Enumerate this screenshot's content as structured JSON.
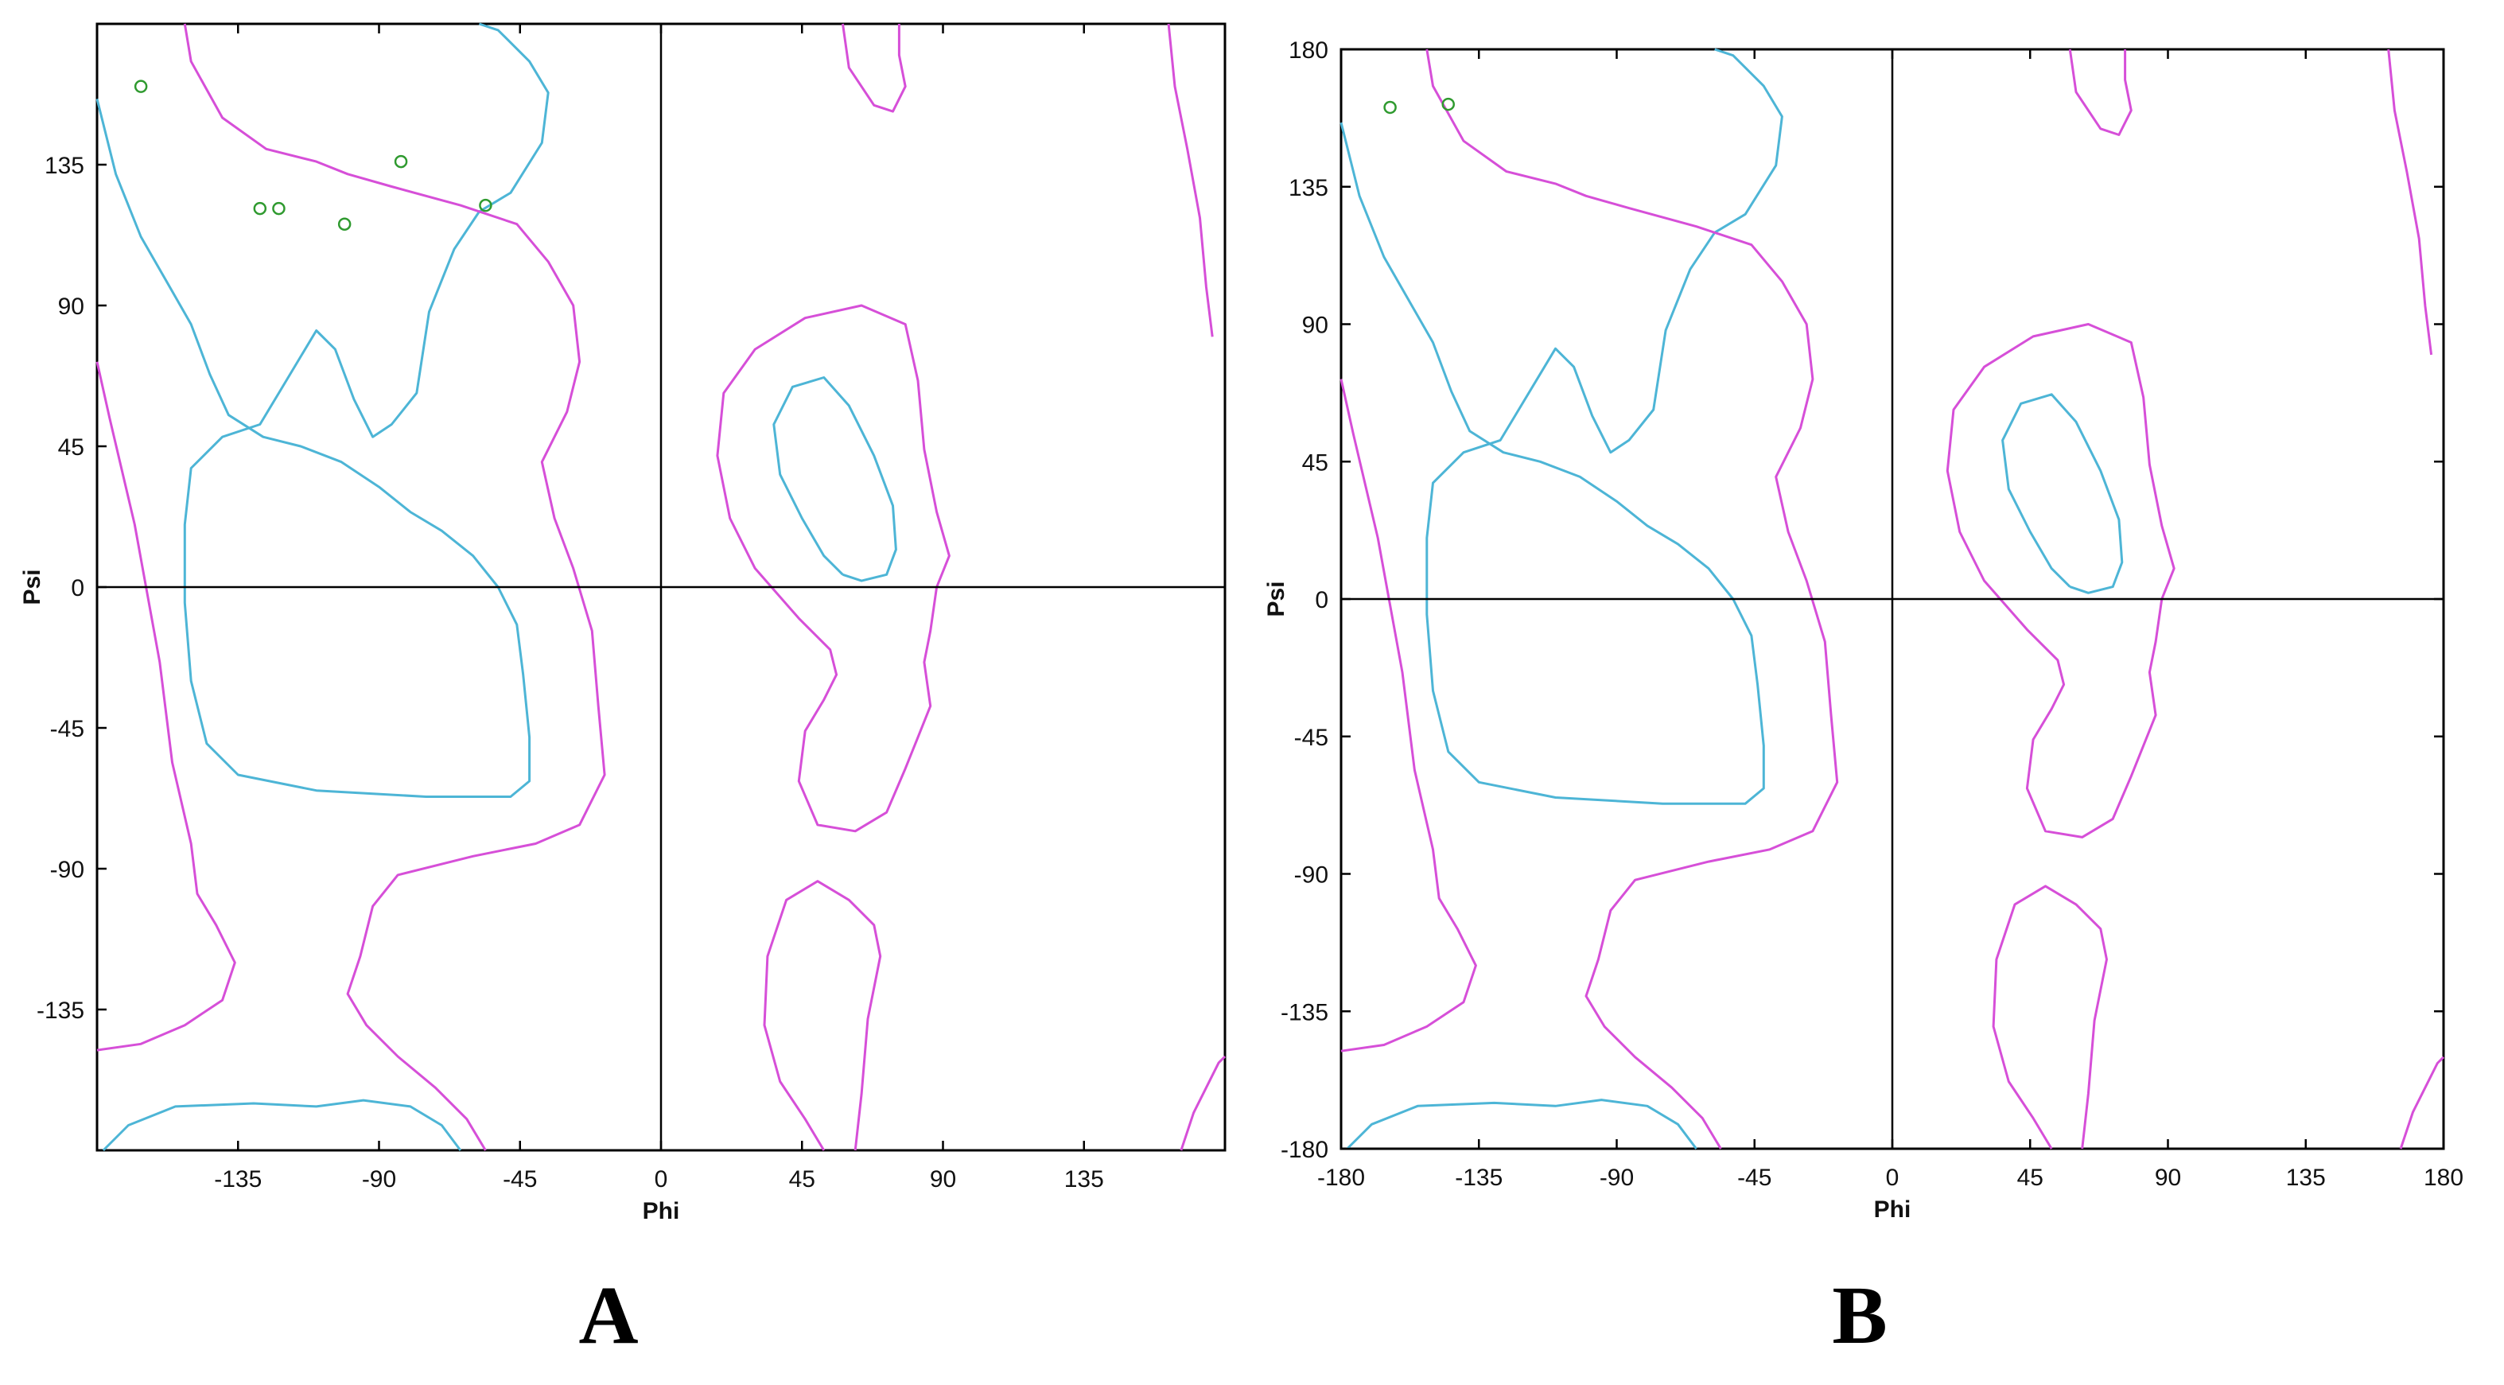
{
  "figure": {
    "panel_letters": [
      "A",
      "B"
    ]
  },
  "chart_data": [
    {
      "type": "scatter",
      "panel": "A",
      "title": "",
      "xlabel": "Phi",
      "ylabel": "Psi",
      "xlim": [
        -180,
        180
      ],
      "ylim": [
        -180,
        180
      ],
      "x_ticks": [
        -135,
        -90,
        -45,
        0,
        45,
        90,
        135
      ],
      "y_ticks": [
        135,
        90,
        45,
        0,
        -45,
        -90,
        -135
      ],
      "grid": false,
      "colors": {
        "core_region": "#4db5d6",
        "allowed_region": "#d64fd8",
        "points": "#2f9a2f"
      },
      "points": [
        {
          "phi": -166,
          "psi": 160
        },
        {
          "phi": -128,
          "psi": 121
        },
        {
          "phi": -122,
          "psi": 121
        },
        {
          "phi": -101,
          "psi": 116
        },
        {
          "phi": -83,
          "psi": 136
        },
        {
          "phi": -56,
          "psi": 122
        }
      ]
    },
    {
      "type": "scatter",
      "panel": "B",
      "title": "",
      "xlabel": "Phi",
      "ylabel": "Psi",
      "xlim": [
        -180,
        180
      ],
      "ylim": [
        -180,
        180
      ],
      "x_ticks": [
        -180,
        -135,
        -90,
        -45,
        0,
        45,
        90,
        135,
        180
      ],
      "y_ticks": [
        180,
        135,
        90,
        45,
        0,
        -45,
        -90,
        -135,
        -180
      ],
      "grid": false,
      "colors": {
        "core_region": "#4db5d6",
        "allowed_region": "#d64fd8",
        "points": "#2f9a2f"
      },
      "points": [
        {
          "phi": -164,
          "psi": 161
        },
        {
          "phi": -145,
          "psi": 162
        }
      ]
    }
  ]
}
